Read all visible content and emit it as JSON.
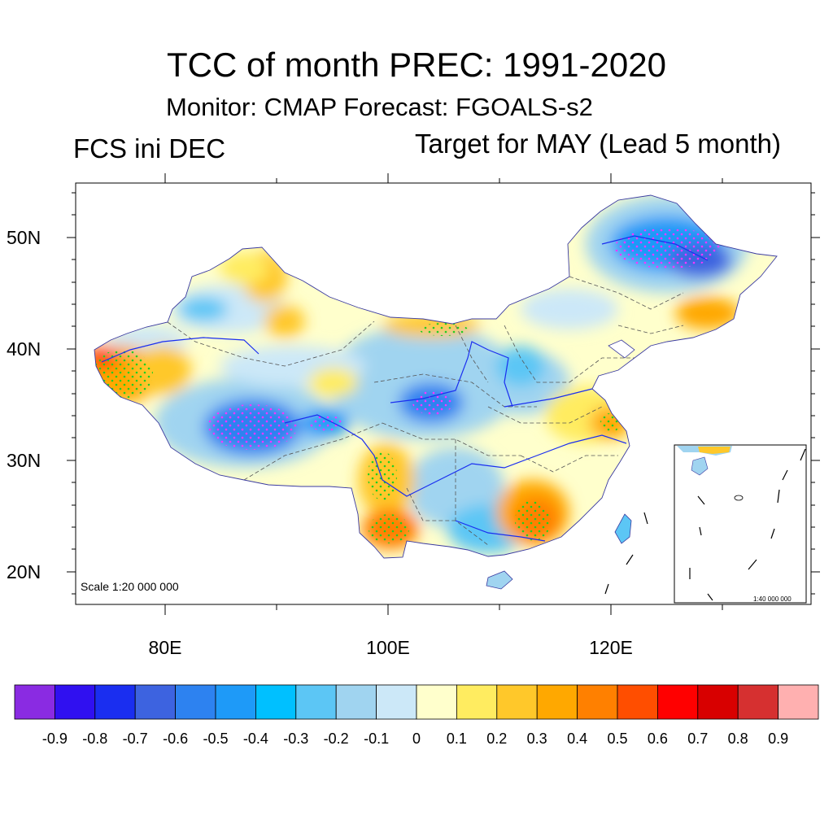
{
  "title": "TCC of month PREC: 1991-2020",
  "subtitle": "Monitor: CMAP   Forecast: FGOALS-s2",
  "left_label": "FCS ini DEC",
  "right_label": "Target for MAY (Lead 5 month)",
  "scale_main": "Scale 1:20 000 000",
  "scale_inset": "1:40 000 000",
  "lat_labels": [
    "50N",
    "40N",
    "30N",
    "20N"
  ],
  "lon_labels": [
    "80E",
    "100E",
    "120E"
  ],
  "colorbar": {
    "colors": [
      "#8a2be2",
      "#3010f0",
      "#1a2ef0",
      "#3d63e0",
      "#2d82f0",
      "#1e9af8",
      "#00c0ff",
      "#5cc6f5",
      "#a0d4f0",
      "#cce8f8",
      "#ffffcc",
      "#ffec60",
      "#ffc82a",
      "#ffa800",
      "#ff8000",
      "#ff4e00",
      "#ff0000",
      "#d80000",
      "#d63030",
      "#ffb0b0"
    ],
    "labels": [
      "-0.9",
      "-0.8",
      "-0.7",
      "-0.6",
      "-0.5",
      "-0.4",
      "-0.3",
      "-0.2",
      "-0.1",
      "0",
      "0.1",
      "0.2",
      "0.3",
      "0.4",
      "0.5",
      "0.6",
      "0.7",
      "0.8",
      "0.9"
    ]
  },
  "map_regions": [
    {
      "name": "northeast",
      "value": -0.6
    },
    {
      "name": "tibet-west",
      "value": -0.6
    },
    {
      "name": "qinghai-east",
      "value": -0.6
    },
    {
      "name": "kashgar-west",
      "value": 0.5
    },
    {
      "name": "yunnan",
      "value": 0.4
    },
    {
      "name": "guangxi-guangdong",
      "value": 0.4
    },
    {
      "name": "inner-mongolia-north",
      "value": 0.4
    },
    {
      "name": "jiangsu",
      "value": 0.3
    },
    {
      "name": "northeast-edge",
      "value": 0.4
    }
  ]
}
